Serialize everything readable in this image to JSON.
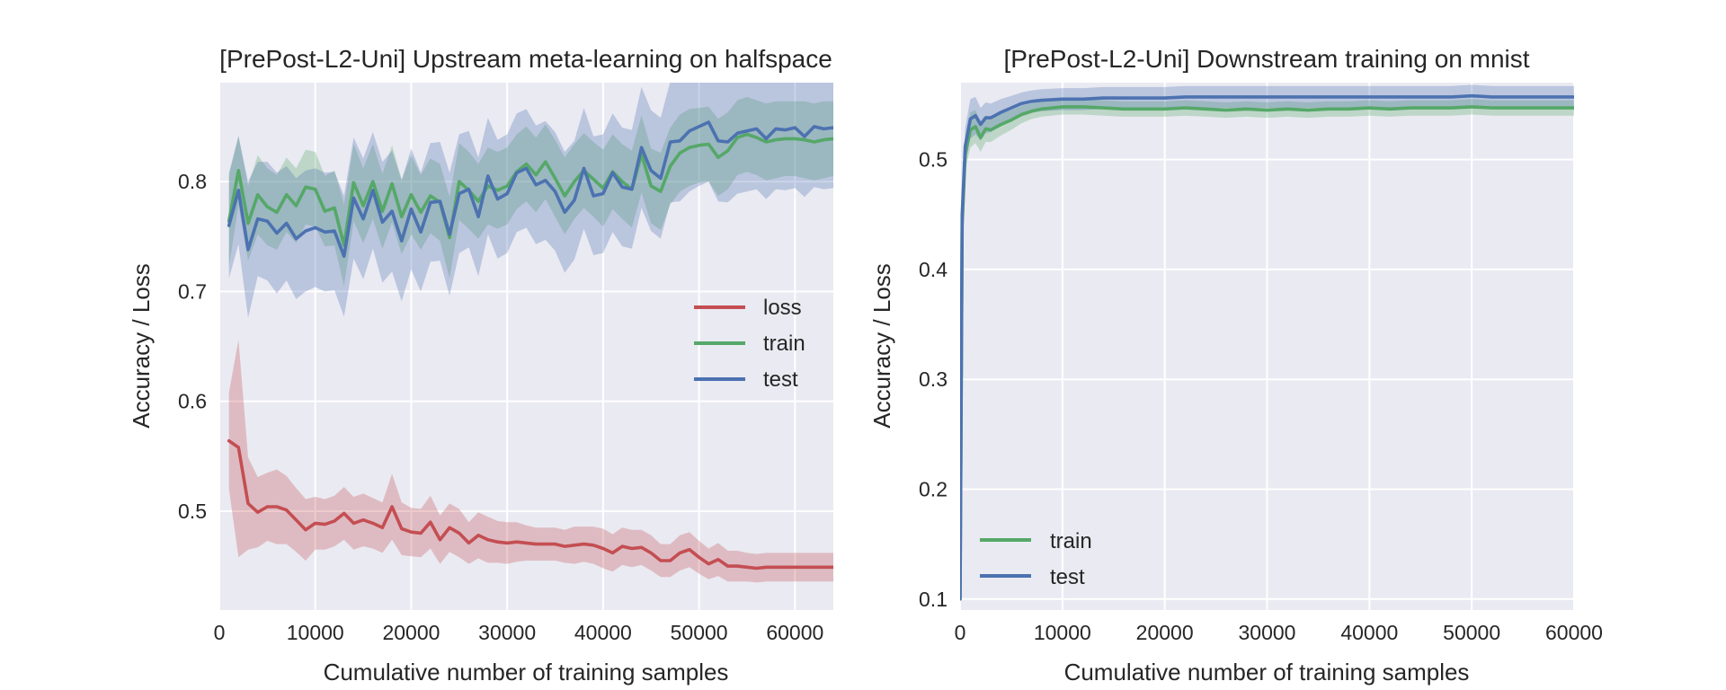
{
  "colors": {
    "background": "#EAEAF2",
    "grid": "#FFFFFF",
    "loss": "#C44E52",
    "train": "#55A868",
    "test": "#4C72B0"
  },
  "chart_data": [
    {
      "type": "line",
      "title": "[PrePost-L2-Uni] Upstream meta-learning on halfspace",
      "xlabel": "Cumulative number of training samples",
      "ylabel": "Accuracy / Loss",
      "xlim": [
        0,
        64000
      ],
      "ylim": [
        0.41,
        0.89
      ],
      "xticks": [
        0,
        10000,
        20000,
        30000,
        40000,
        50000,
        60000
      ],
      "xtick_labels": [
        "0",
        "10000",
        "20000",
        "30000",
        "40000",
        "50000",
        "60000"
      ],
      "yticks": [
        0.5,
        0.6,
        0.7,
        0.8
      ],
      "ytick_labels": [
        "0.5",
        "0.6",
        "0.7",
        "0.8"
      ],
      "grid": true,
      "legend_position": "center-right",
      "x": [
        1000,
        2000,
        3000,
        4000,
        5000,
        6000,
        7000,
        8000,
        9000,
        10000,
        11000,
        12000,
        13000,
        14000,
        15000,
        16000,
        17000,
        18000,
        19000,
        20000,
        21000,
        22000,
        23000,
        24000,
        25000,
        26000,
        27000,
        28000,
        29000,
        30000,
        31000,
        32000,
        33000,
        34000,
        35000,
        36000,
        37000,
        38000,
        39000,
        40000,
        41000,
        42000,
        43000,
        44000,
        45000,
        46000,
        47000,
        48000,
        49000,
        50000,
        51000,
        52000,
        53000,
        54000,
        55000,
        56000,
        57000,
        58000,
        59000,
        60000,
        61000,
        62000,
        63000,
        64000
      ],
      "series": [
        {
          "name": "loss",
          "color": "#C44E52",
          "values": [
            0.564,
            0.558,
            0.507,
            0.499,
            0.504,
            0.504,
            0.501,
            0.492,
            0.483,
            0.489,
            0.488,
            0.491,
            0.498,
            0.489,
            0.492,
            0.489,
            0.485,
            0.504,
            0.484,
            0.481,
            0.48,
            0.49,
            0.474,
            0.485,
            0.48,
            0.471,
            0.478,
            0.474,
            0.472,
            0.471,
            0.472,
            0.471,
            0.47,
            0.47,
            0.47,
            0.468,
            0.469,
            0.47,
            0.469,
            0.466,
            0.462,
            0.468,
            0.466,
            0.467,
            0.462,
            0.455,
            0.455,
            0.462,
            0.465,
            0.458,
            0.452,
            0.456,
            0.45,
            0.45,
            0.449,
            0.448,
            0.449,
            0.449,
            0.449,
            0.449,
            0.449,
            0.449,
            0.449,
            0.449
          ],
          "lower": [
            0.52,
            0.458,
            0.465,
            0.467,
            0.473,
            0.47,
            0.47,
            0.463,
            0.455,
            0.465,
            0.465,
            0.468,
            0.474,
            0.465,
            0.468,
            0.466,
            0.462,
            0.474,
            0.46,
            0.459,
            0.458,
            0.466,
            0.452,
            0.463,
            0.458,
            0.452,
            0.457,
            0.453,
            0.453,
            0.452,
            0.454,
            0.455,
            0.455,
            0.455,
            0.455,
            0.453,
            0.452,
            0.454,
            0.452,
            0.448,
            0.445,
            0.451,
            0.449,
            0.451,
            0.446,
            0.44,
            0.44,
            0.446,
            0.449,
            0.443,
            0.438,
            0.441,
            0.436,
            0.436,
            0.436,
            0.435,
            0.436,
            0.436,
            0.436,
            0.436,
            0.436,
            0.436,
            0.436,
            0.436
          ],
          "upper": [
            0.608,
            0.656,
            0.549,
            0.531,
            0.535,
            0.538,
            0.532,
            0.521,
            0.511,
            0.513,
            0.511,
            0.514,
            0.522,
            0.513,
            0.516,
            0.512,
            0.508,
            0.534,
            0.508,
            0.503,
            0.502,
            0.514,
            0.496,
            0.507,
            0.502,
            0.49,
            0.499,
            0.495,
            0.491,
            0.49,
            0.49,
            0.487,
            0.485,
            0.485,
            0.485,
            0.483,
            0.486,
            0.486,
            0.486,
            0.484,
            0.479,
            0.485,
            0.483,
            0.483,
            0.478,
            0.47,
            0.47,
            0.478,
            0.481,
            0.473,
            0.466,
            0.471,
            0.464,
            0.464,
            0.462,
            0.461,
            0.462,
            0.462,
            0.462,
            0.462,
            0.462,
            0.462,
            0.462,
            0.462
          ]
        },
        {
          "name": "train",
          "color": "#55A868",
          "values": [
            0.764,
            0.81,
            0.762,
            0.788,
            0.777,
            0.772,
            0.788,
            0.778,
            0.795,
            0.793,
            0.773,
            0.776,
            0.742,
            0.799,
            0.778,
            0.8,
            0.773,
            0.798,
            0.768,
            0.788,
            0.772,
            0.787,
            0.781,
            0.749,
            0.8,
            0.792,
            0.782,
            0.796,
            0.792,
            0.796,
            0.809,
            0.816,
            0.806,
            0.818,
            0.803,
            0.787,
            0.8,
            0.81,
            0.802,
            0.794,
            0.809,
            0.8,
            0.793,
            0.825,
            0.796,
            0.791,
            0.814,
            0.826,
            0.831,
            0.833,
            0.834,
            0.822,
            0.828,
            0.84,
            0.843,
            0.84,
            0.836,
            0.838,
            0.839,
            0.839,
            0.838,
            0.836,
            0.838,
            0.839
          ],
          "lower": [
            0.723,
            0.778,
            0.728,
            0.752,
            0.742,
            0.738,
            0.754,
            0.744,
            0.761,
            0.759,
            0.741,
            0.742,
            0.705,
            0.764,
            0.744,
            0.766,
            0.739,
            0.763,
            0.734,
            0.752,
            0.738,
            0.753,
            0.746,
            0.712,
            0.765,
            0.757,
            0.748,
            0.761,
            0.757,
            0.761,
            0.775,
            0.782,
            0.772,
            0.784,
            0.768,
            0.752,
            0.766,
            0.776,
            0.768,
            0.759,
            0.775,
            0.766,
            0.758,
            0.79,
            0.762,
            0.756,
            0.779,
            0.791,
            0.796,
            0.799,
            0.8,
            0.787,
            0.793,
            0.806,
            0.809,
            0.806,
            0.801,
            0.803,
            0.805,
            0.805,
            0.803,
            0.801,
            0.803,
            0.805
          ],
          "upper": [
            0.805,
            0.842,
            0.796,
            0.824,
            0.812,
            0.806,
            0.822,
            0.812,
            0.829,
            0.827,
            0.805,
            0.81,
            0.779,
            0.834,
            0.812,
            0.834,
            0.807,
            0.833,
            0.802,
            0.824,
            0.806,
            0.821,
            0.816,
            0.786,
            0.835,
            0.827,
            0.816,
            0.831,
            0.827,
            0.831,
            0.843,
            0.85,
            0.84,
            0.852,
            0.838,
            0.822,
            0.834,
            0.844,
            0.836,
            0.829,
            0.843,
            0.834,
            0.828,
            0.86,
            0.83,
            0.826,
            0.849,
            0.861,
            0.866,
            0.867,
            0.868,
            0.857,
            0.863,
            0.874,
            0.877,
            0.874,
            0.871,
            0.873,
            0.873,
            0.873,
            0.873,
            0.871,
            0.873,
            0.873
          ]
        },
        {
          "name": "test",
          "color": "#4C72B0",
          "values": [
            0.76,
            0.792,
            0.738,
            0.766,
            0.764,
            0.753,
            0.762,
            0.748,
            0.755,
            0.758,
            0.754,
            0.755,
            0.732,
            0.785,
            0.766,
            0.792,
            0.763,
            0.773,
            0.746,
            0.775,
            0.754,
            0.781,
            0.782,
            0.752,
            0.789,
            0.793,
            0.768,
            0.805,
            0.784,
            0.789,
            0.808,
            0.812,
            0.797,
            0.801,
            0.791,
            0.772,
            0.783,
            0.812,
            0.787,
            0.789,
            0.808,
            0.795,
            0.793,
            0.831,
            0.81,
            0.803,
            0.836,
            0.837,
            0.846,
            0.85,
            0.854,
            0.837,
            0.836,
            0.844,
            0.846,
            0.848,
            0.839,
            0.848,
            0.847,
            0.849,
            0.841,
            0.85,
            0.848,
            0.849
          ],
          "lower": [
            0.712,
            0.743,
            0.676,
            0.714,
            0.71,
            0.698,
            0.71,
            0.693,
            0.7,
            0.704,
            0.7,
            0.701,
            0.677,
            0.73,
            0.711,
            0.739,
            0.708,
            0.718,
            0.691,
            0.72,
            0.7,
            0.727,
            0.728,
            0.696,
            0.735,
            0.74,
            0.714,
            0.752,
            0.73,
            0.735,
            0.754,
            0.758,
            0.743,
            0.747,
            0.737,
            0.717,
            0.729,
            0.757,
            0.733,
            0.735,
            0.754,
            0.741,
            0.739,
            0.776,
            0.755,
            0.748,
            0.781,
            0.782,
            0.791,
            0.796,
            0.8,
            0.782,
            0.781,
            0.789,
            0.791,
            0.793,
            0.784,
            0.793,
            0.792,
            0.794,
            0.786,
            0.795,
            0.793,
            0.794
          ],
          "upper": [
            0.808,
            0.841,
            0.8,
            0.818,
            0.818,
            0.808,
            0.814,
            0.803,
            0.81,
            0.812,
            0.808,
            0.809,
            0.787,
            0.84,
            0.821,
            0.845,
            0.818,
            0.828,
            0.801,
            0.83,
            0.808,
            0.835,
            0.836,
            0.808,
            0.843,
            0.846,
            0.822,
            0.858,
            0.838,
            0.843,
            0.862,
            0.866,
            0.851,
            0.855,
            0.845,
            0.827,
            0.837,
            0.867,
            0.841,
            0.843,
            0.862,
            0.849,
            0.847,
            0.886,
            0.865,
            0.858,
            0.891,
            0.892,
            0.901,
            0.904,
            0.908,
            0.892,
            0.891,
            0.899,
            0.901,
            0.903,
            0.894,
            0.903,
            0.902,
            0.904,
            0.896,
            0.905,
            0.903,
            0.904
          ]
        }
      ]
    },
    {
      "type": "line",
      "title": "[PrePost-L2-Uni] Downstream training on mnist",
      "xlabel": "Cumulative number of training samples",
      "ylabel": "Accuracy / Loss",
      "xlim": [
        0,
        60000
      ],
      "ylim": [
        0.09,
        0.57
      ],
      "xticks": [
        0,
        10000,
        20000,
        30000,
        40000,
        50000,
        60000
      ],
      "xtick_labels": [
        "0",
        "10000",
        "20000",
        "30000",
        "40000",
        "50000",
        "60000"
      ],
      "yticks": [
        0.1,
        0.2,
        0.3,
        0.4,
        0.5
      ],
      "ytick_labels": [
        "0.1",
        "0.2",
        "0.3",
        "0.4",
        "0.5"
      ],
      "grid": true,
      "legend_position": "lower-left",
      "x": [
        0,
        200,
        500,
        1000,
        1500,
        2000,
        2500,
        3000,
        4000,
        5000,
        6000,
        7000,
        8000,
        10000,
        12000,
        14000,
        16000,
        18000,
        20000,
        22000,
        24000,
        26000,
        28000,
        30000,
        32000,
        34000,
        36000,
        38000,
        40000,
        42000,
        44000,
        46000,
        48000,
        50000,
        52000,
        54000,
        56000,
        58000,
        60000
      ],
      "series": [
        {
          "name": "train",
          "color": "#55A868",
          "values": [
            0.1,
            0.44,
            0.505,
            0.527,
            0.53,
            0.52,
            0.528,
            0.527,
            0.532,
            0.536,
            0.541,
            0.544,
            0.546,
            0.548,
            0.548,
            0.547,
            0.546,
            0.546,
            0.546,
            0.547,
            0.546,
            0.545,
            0.546,
            0.545,
            0.546,
            0.545,
            0.546,
            0.546,
            0.547,
            0.546,
            0.547,
            0.547,
            0.547,
            0.548,
            0.547,
            0.547,
            0.547,
            0.547,
            0.547
          ],
          "lower": [
            0.095,
            0.428,
            0.49,
            0.511,
            0.515,
            0.507,
            0.516,
            0.516,
            0.522,
            0.527,
            0.533,
            0.537,
            0.539,
            0.541,
            0.541,
            0.54,
            0.539,
            0.539,
            0.539,
            0.54,
            0.539,
            0.538,
            0.539,
            0.538,
            0.539,
            0.538,
            0.539,
            0.539,
            0.54,
            0.539,
            0.54,
            0.54,
            0.54,
            0.541,
            0.54,
            0.54,
            0.54,
            0.54,
            0.54
          ],
          "upper": [
            0.105,
            0.452,
            0.52,
            0.543,
            0.545,
            0.533,
            0.54,
            0.538,
            0.542,
            0.545,
            0.549,
            0.551,
            0.553,
            0.555,
            0.555,
            0.554,
            0.553,
            0.553,
            0.553,
            0.554,
            0.553,
            0.552,
            0.553,
            0.552,
            0.553,
            0.552,
            0.553,
            0.553,
            0.554,
            0.553,
            0.554,
            0.554,
            0.554,
            0.555,
            0.554,
            0.554,
            0.554,
            0.554,
            0.554
          ]
        },
        {
          "name": "test",
          "color": "#4C72B0",
          "values": [
            0.1,
            0.45,
            0.512,
            0.537,
            0.54,
            0.532,
            0.538,
            0.538,
            0.543,
            0.547,
            0.551,
            0.553,
            0.554,
            0.555,
            0.555,
            0.556,
            0.556,
            0.556,
            0.556,
            0.557,
            0.557,
            0.557,
            0.557,
            0.557,
            0.557,
            0.557,
            0.557,
            0.557,
            0.557,
            0.557,
            0.557,
            0.557,
            0.557,
            0.558,
            0.557,
            0.557,
            0.557,
            0.557,
            0.557
          ],
          "lower": [
            0.094,
            0.436,
            0.495,
            0.519,
            0.523,
            0.517,
            0.524,
            0.525,
            0.531,
            0.536,
            0.541,
            0.543,
            0.544,
            0.545,
            0.545,
            0.546,
            0.546,
            0.546,
            0.546,
            0.547,
            0.547,
            0.547,
            0.547,
            0.547,
            0.547,
            0.547,
            0.547,
            0.547,
            0.547,
            0.547,
            0.547,
            0.547,
            0.547,
            0.548,
            0.547,
            0.547,
            0.547,
            0.547,
            0.547
          ],
          "upper": [
            0.106,
            0.464,
            0.529,
            0.555,
            0.557,
            0.547,
            0.552,
            0.551,
            0.555,
            0.558,
            0.561,
            0.563,
            0.564,
            0.565,
            0.565,
            0.566,
            0.566,
            0.566,
            0.566,
            0.567,
            0.567,
            0.567,
            0.567,
            0.567,
            0.567,
            0.567,
            0.567,
            0.567,
            0.567,
            0.567,
            0.567,
            0.567,
            0.567,
            0.568,
            0.567,
            0.567,
            0.567,
            0.567,
            0.567
          ]
        }
      ]
    }
  ]
}
